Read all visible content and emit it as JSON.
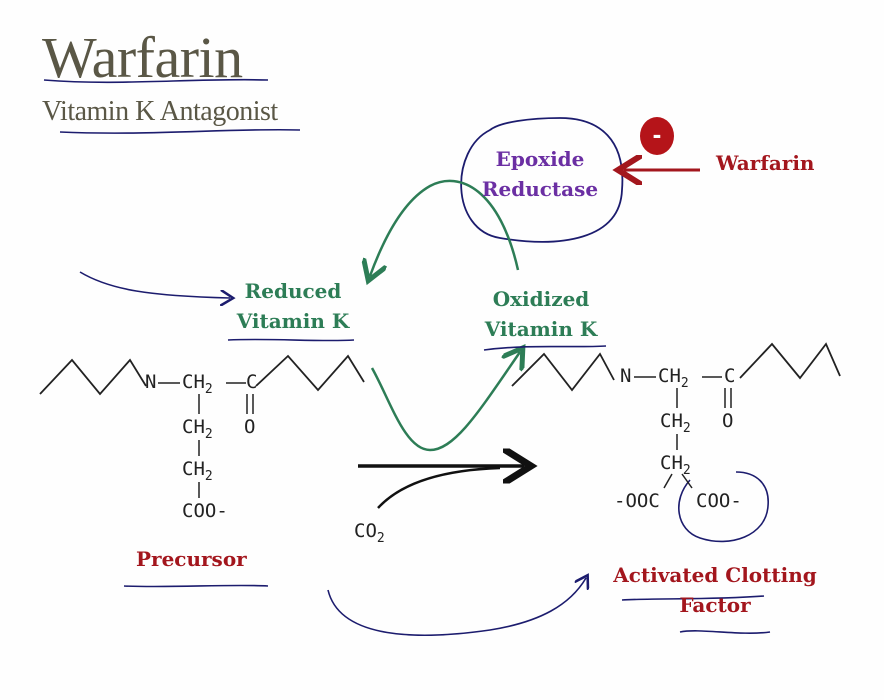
{
  "title": "Warfarin",
  "subtitle": "Vitamin K Antagonist",
  "enzyme": {
    "line1": "Epoxide",
    "line2": "Reductase"
  },
  "inhibitor_label": "Warfarin",
  "inhibition_sign": "-",
  "reduced_vk": {
    "line1": "Reduced",
    "line2": "Vitamin K"
  },
  "oxidized_vk": {
    "line1": "Oxidized",
    "line2": "Vitamin K"
  },
  "precursor_label": "Precursor",
  "product_label": {
    "line1": "Activated Clotting",
    "line2": "Factor"
  },
  "co2": "CO",
  "co2_sub": "2",
  "chem": {
    "n": "N",
    "ch": "CH",
    "sub2": "2",
    "c": "C",
    "o": "O",
    "coo": "COO-",
    "ooc": "-OOC"
  },
  "colors": {
    "title": "#5a5746",
    "enzyme": "#6b2fa3",
    "vitamin_k": "#2d7d56",
    "warfarin": "#a3161d",
    "annotation": "#1c1c6e"
  }
}
